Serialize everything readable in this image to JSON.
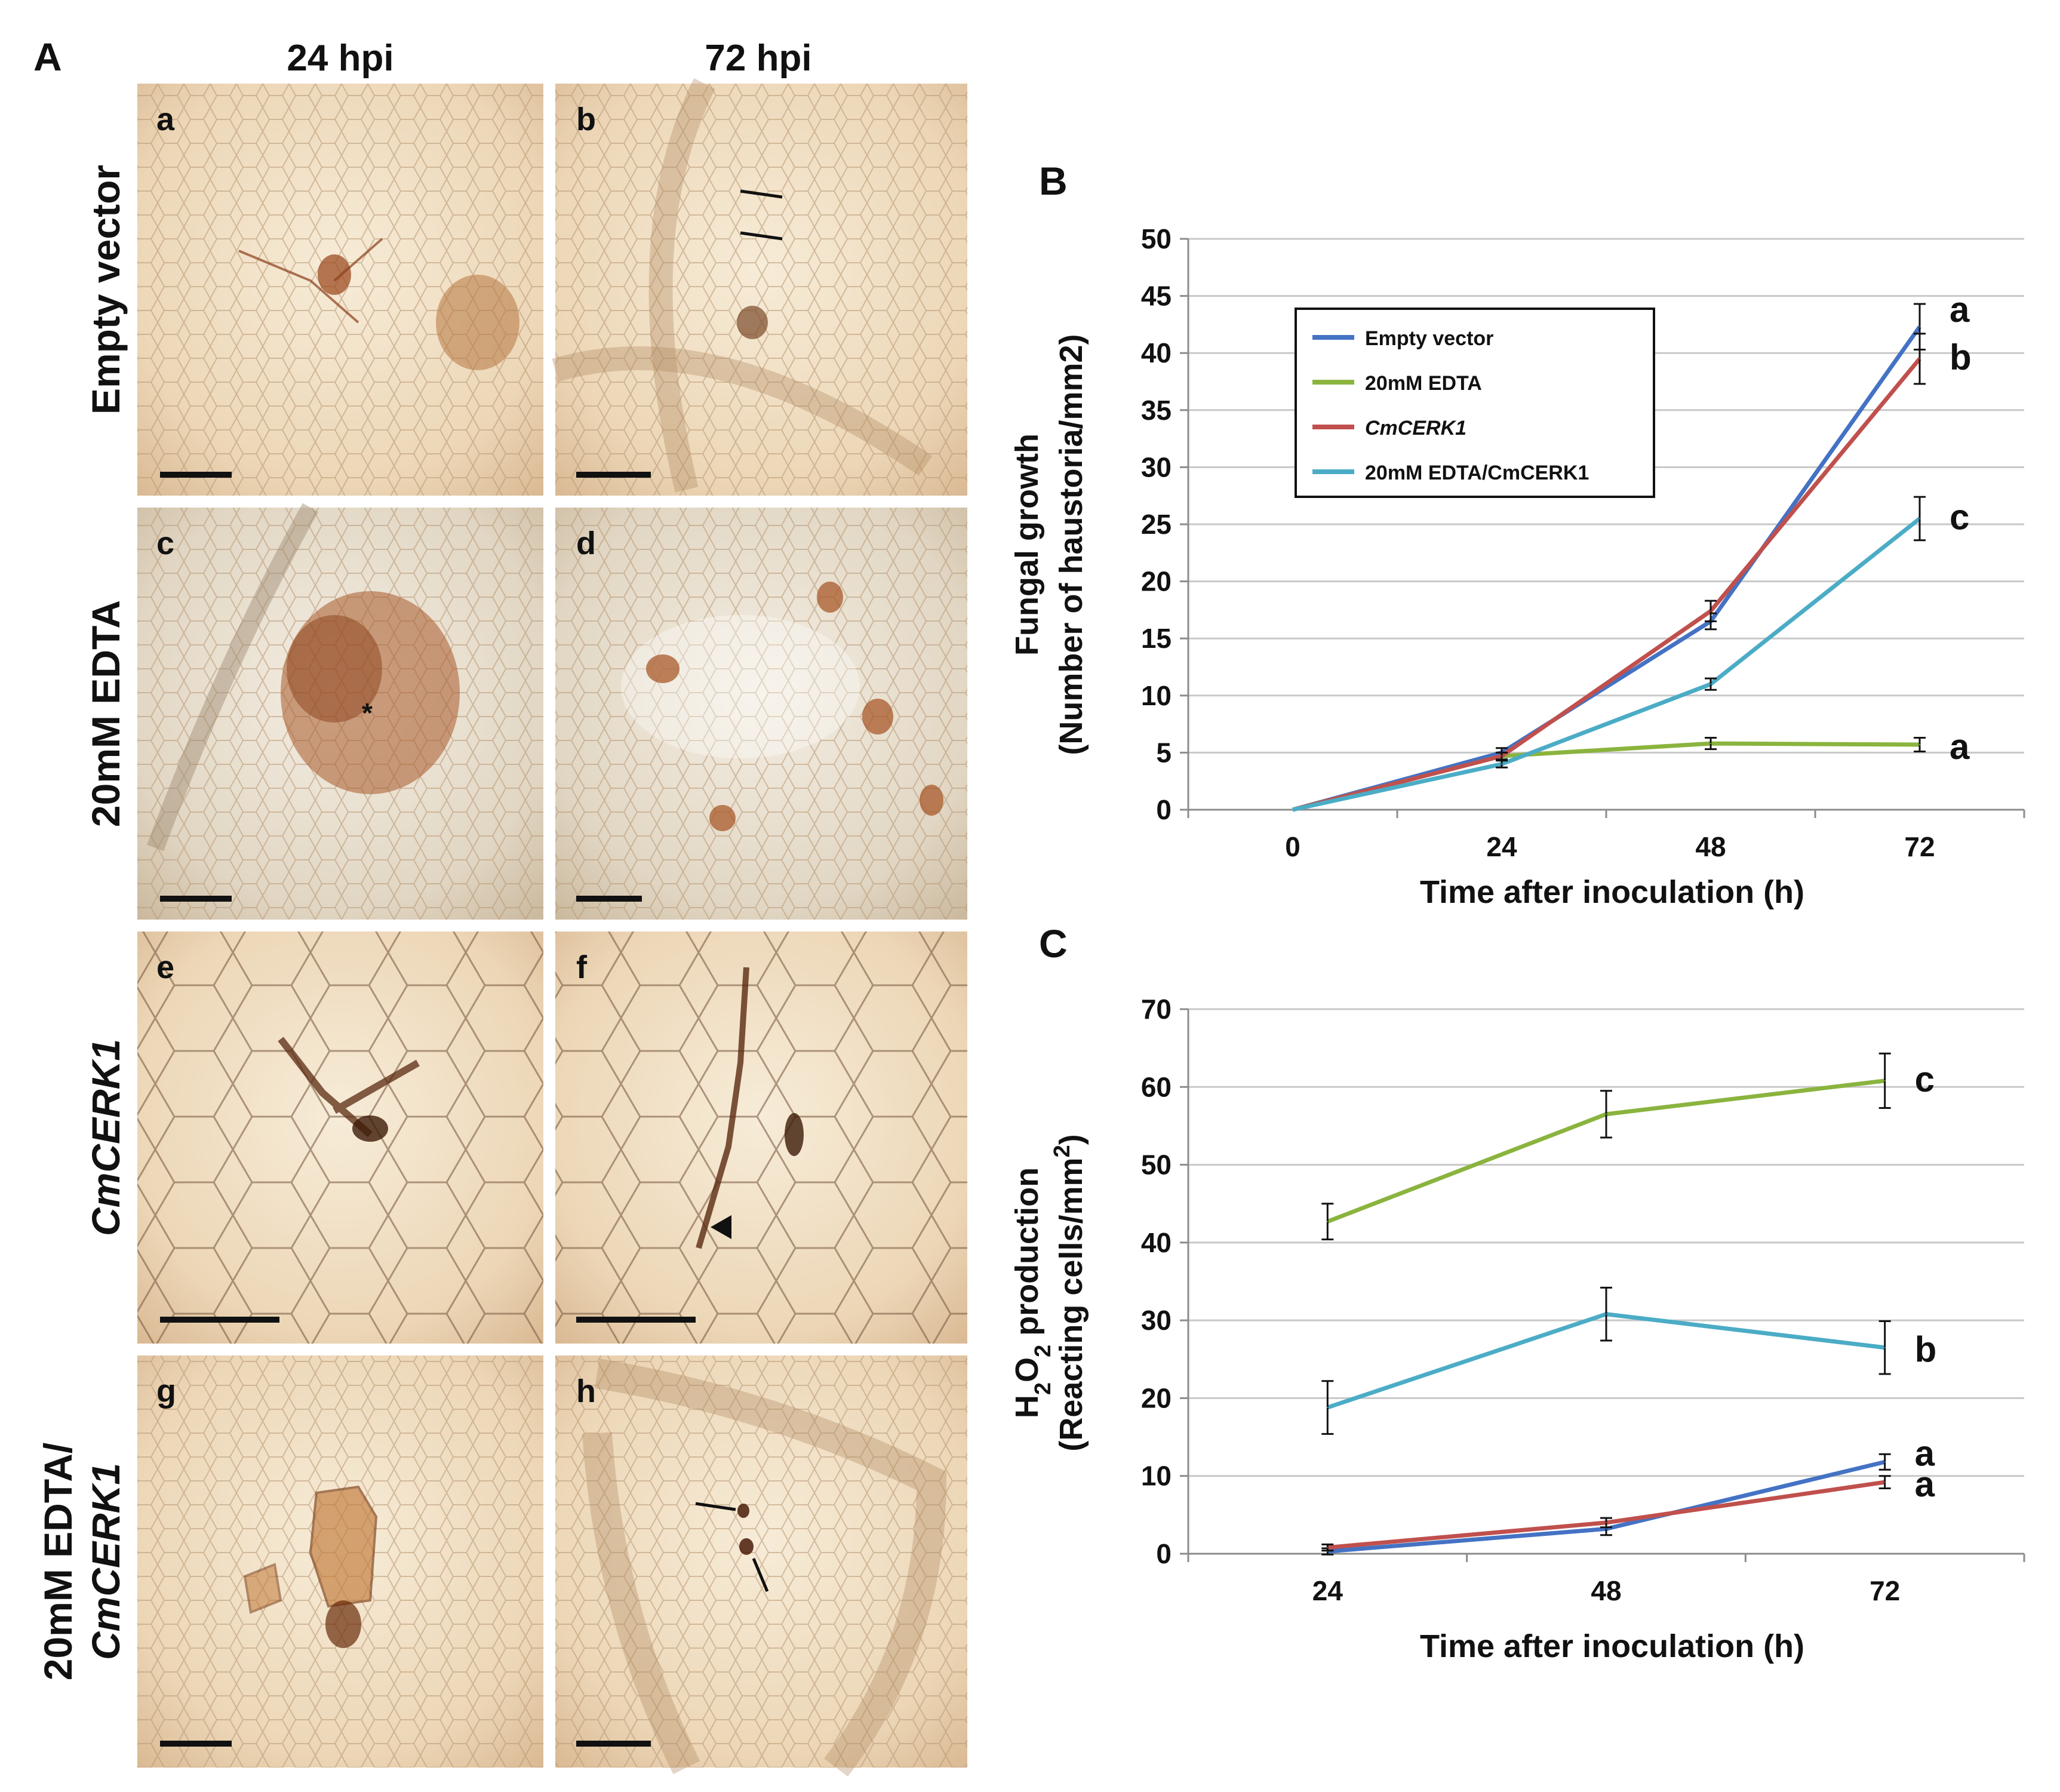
{
  "panel_a": {
    "label": "A",
    "columns": [
      "24 hpi",
      "72 hpi"
    ],
    "rows": [
      {
        "label": "Empty vector",
        "italic": false
      },
      {
        "label": "20mM EDTA",
        "italic": false
      },
      {
        "label": "CmCERK1",
        "italic": true
      },
      {
        "label_line1": "20mM EDTA/",
        "label_line2": "CmCERK1",
        "italic": true
      }
    ],
    "subpanels": [
      "a",
      "b",
      "c",
      "d",
      "e",
      "f",
      "g",
      "h"
    ],
    "asterisk": "*"
  },
  "colors": {
    "empty_vector": "#4472c4",
    "edta": "#8ab43e",
    "cmcerk1": "#c0504d",
    "edta_cmcerk1": "#4bacc6",
    "micrograph_base": "#efdcc0",
    "stain": "#8a3f1a"
  },
  "chart_data": [
    {
      "panel": "B",
      "type": "line",
      "xlabel": "Time after inoculation (h)",
      "ylabel_line1": "Fungal growth",
      "ylabel_line2": "(Number of haustoria/mm2)",
      "categories": [
        "0",
        "24",
        "48",
        "72"
      ],
      "ylim": [
        0,
        50
      ],
      "yticks": [
        "0",
        "5",
        "10",
        "15",
        "20",
        "25",
        "30",
        "35",
        "40",
        "45",
        "50"
      ],
      "grid": true,
      "legend_position": "top-left",
      "series": [
        {
          "name": "Empty vector",
          "values": [
            0,
            5,
            16.5,
            42.3
          ],
          "errors": [
            0,
            0.4,
            0.7,
            2.0
          ]
        },
        {
          "name": "20mM EDTA",
          "values": [
            0,
            4.7,
            5.8,
            5.7
          ],
          "errors": [
            0,
            0.3,
            0.5,
            0.6
          ]
        },
        {
          "name": "CmCERK1",
          "values": [
            0,
            4.7,
            17.4,
            39.5
          ],
          "errors": [
            0,
            0.3,
            0.9,
            2.2
          ]
        },
        {
          "name": "20mM EDTA/CmCERK1",
          "values": [
            0,
            4.0,
            11.0,
            25.5
          ],
          "errors": [
            0,
            0.3,
            0.5,
            1.9
          ]
        }
      ],
      "significance_labels": [
        "a",
        "a",
        "b",
        "c"
      ]
    },
    {
      "panel": "C",
      "type": "line",
      "xlabel": "Time after inoculation (h)",
      "ylabel_line1": "H2O2 production",
      "ylabel_line2": "(Reacting cells/mm2)",
      "categories": [
        "24",
        "48",
        "72"
      ],
      "ylim": [
        0,
        70
      ],
      "yticks": [
        "0",
        "10",
        "20",
        "30",
        "40",
        "50",
        "60",
        "70"
      ],
      "grid": true,
      "series": [
        {
          "name": "20mM EDTA",
          "values": [
            42.7,
            56.5,
            60.8
          ],
          "errors": [
            2.3,
            3.0,
            3.5
          ]
        },
        {
          "name": "20mM EDTA/CmCERK1",
          "values": [
            18.8,
            30.8,
            26.5
          ],
          "errors": [
            3.4,
            3.4,
            3.4
          ]
        },
        {
          "name": "Empty vector",
          "values": [
            0.3,
            3.2,
            11.8
          ],
          "errors": [
            0.4,
            0.8,
            1.0
          ]
        },
        {
          "name": "CmCERK1",
          "values": [
            0.8,
            4.0,
            9.2
          ],
          "errors": [
            0.4,
            0.6,
            0.8
          ]
        }
      ],
      "significance_labels": [
        "c",
        "b",
        "a",
        "a"
      ]
    }
  ]
}
